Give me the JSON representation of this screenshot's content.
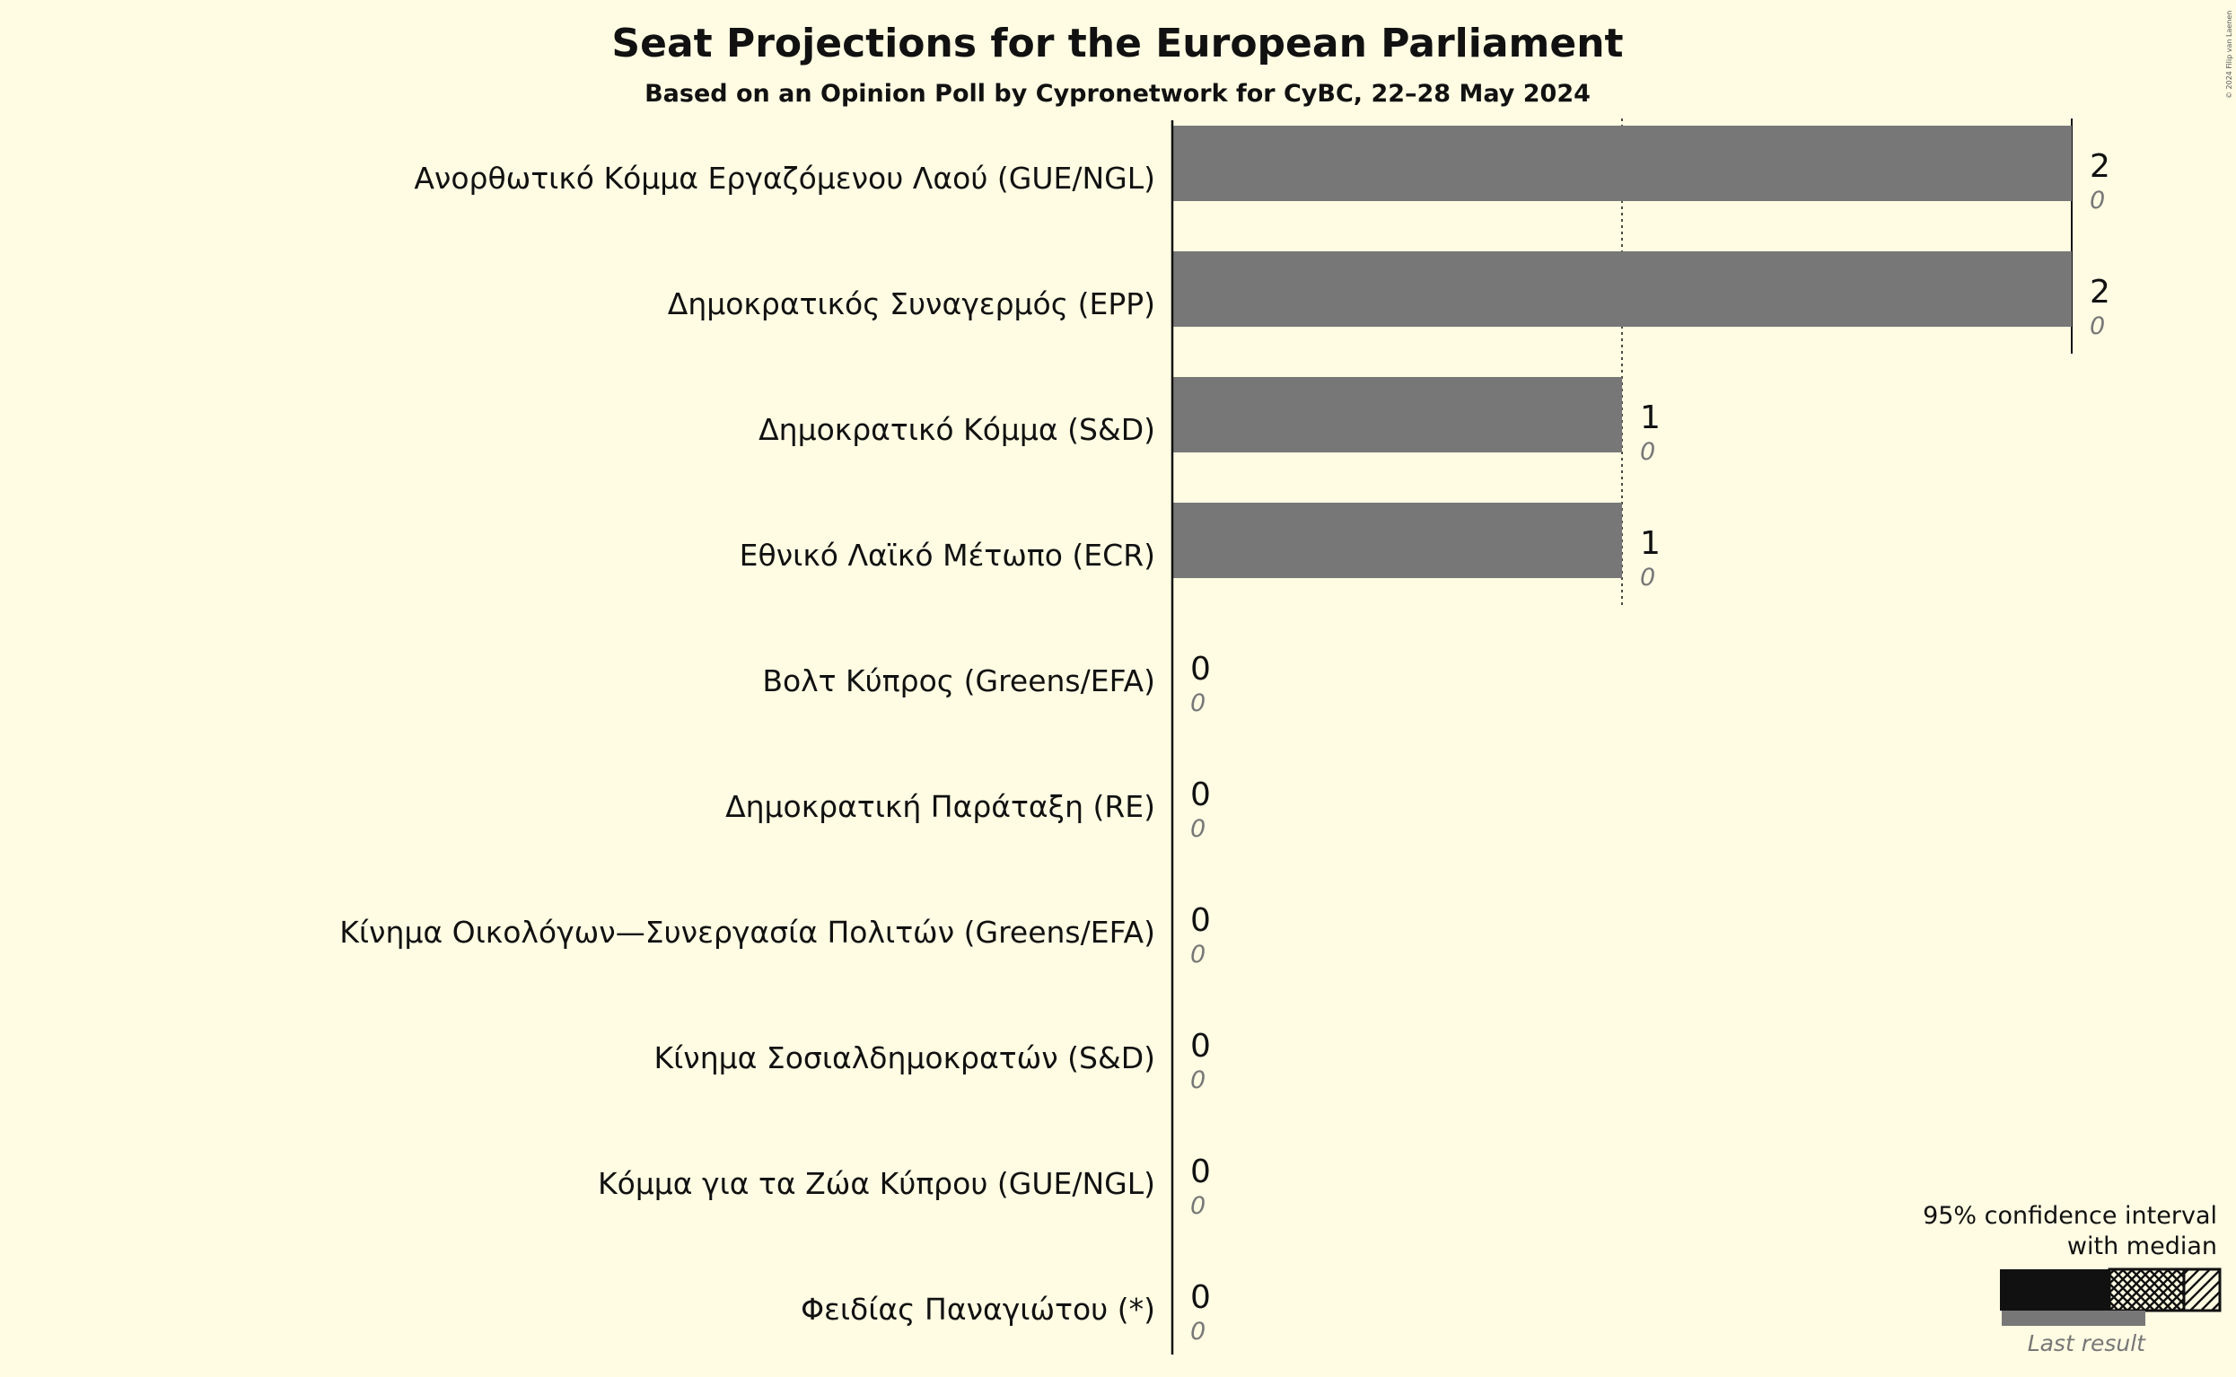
{
  "chart_data": {
    "type": "bar",
    "orientation": "horizontal",
    "title": "Seat Projections for the European Parliament",
    "subtitle": "Based on an Opinion Poll by Cypronetwork for CyBC, 22–28 May 2024",
    "categories": [
      "Ανορθωτικό Κόμμα Εργαζόμενου Λαού (GUE/NGL)",
      "Δημοκρατικός Συναγερμός (EPP)",
      "Δημοκρατικό Κόμμα (S&D)",
      "Εθνικό Λαϊκό Μέτωπο (ECR)",
      "Βολτ Κύπρος (Greens/EFA)",
      "Δημοκρατική Παράταξη (RE)",
      "Κίνημα Οικολόγων—Συνεργασία Πολιτών (Greens/EFA)",
      "Κίνημα Σοσιαλδημοκρατών (S&D)",
      "Κόμμα για τα Ζώα Κύπρου (GUE/NGL)",
      "Φειδίας Παναγιώτου (*)"
    ],
    "series": [
      {
        "name": "Median seats",
        "values": [
          2,
          2,
          1,
          1,
          0,
          0,
          0,
          0,
          0,
          0
        ]
      },
      {
        "name": "Last result",
        "values": [
          0,
          0,
          0,
          0,
          0,
          0,
          0,
          0,
          0,
          0
        ]
      }
    ],
    "xlim": [
      0,
      2
    ],
    "gridlines": [
      1,
      2
    ],
    "legend": {
      "title_line1": "95% confidence interval",
      "title_line2": "with median",
      "last_result_label": "Last result",
      "position": "bottom-right"
    },
    "copyright": "© 2024 Filip van Laenen"
  },
  "colors": {
    "background": "#FFFCE3",
    "bar": "#777777",
    "text": "#111111",
    "last_result_text": "#777777"
  }
}
